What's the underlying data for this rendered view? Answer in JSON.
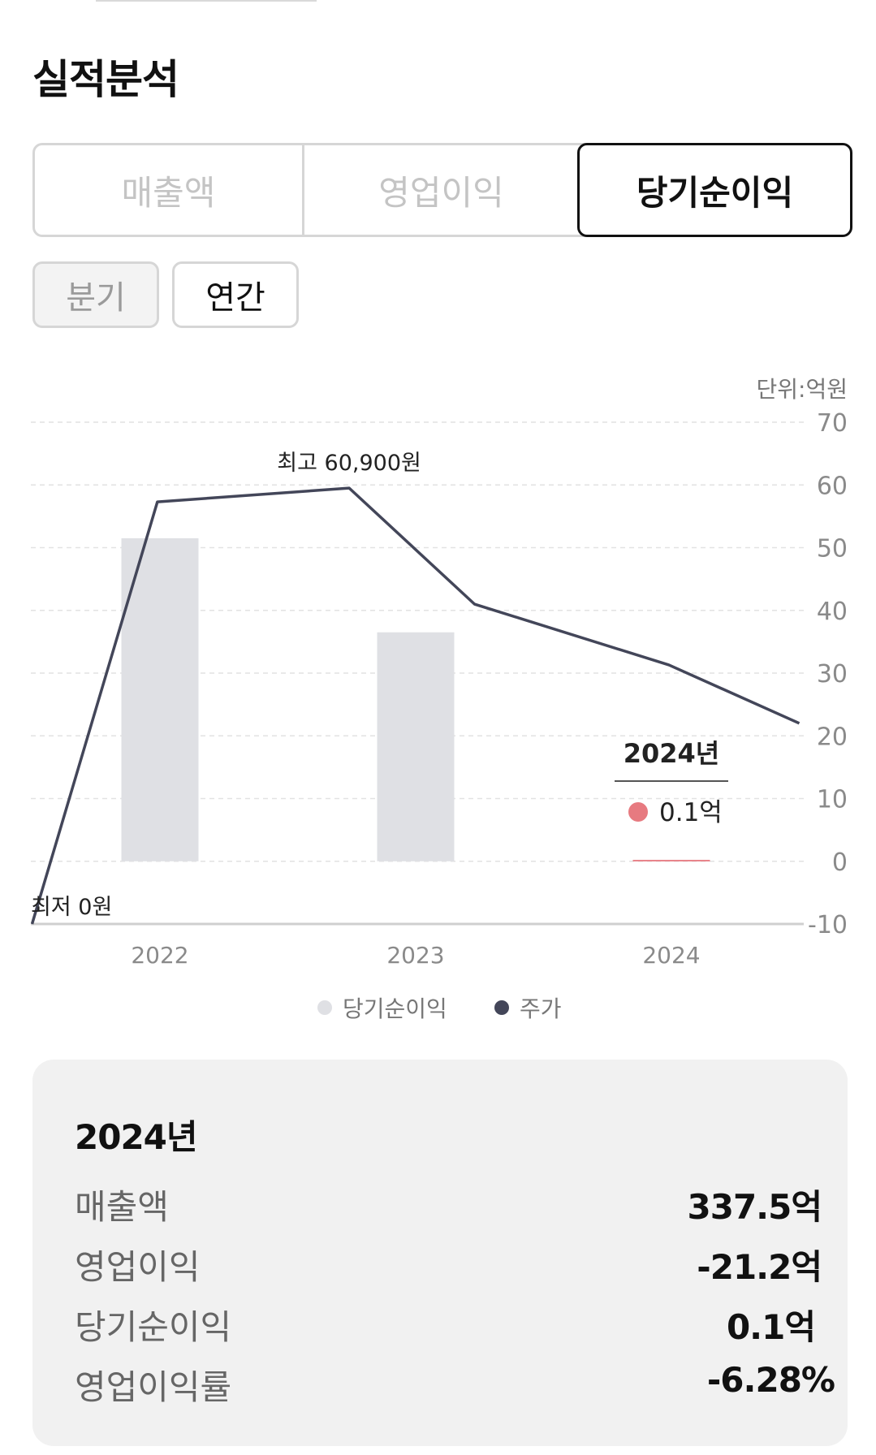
{
  "section": {
    "title": "실적분석"
  },
  "metric_tabs": [
    {
      "label": "매출액",
      "active": false
    },
    {
      "label": "영업이익",
      "active": false
    },
    {
      "label": "당기순이익",
      "active": true
    }
  ],
  "period_tabs": [
    {
      "label": "분기",
      "active": false
    },
    {
      "label": "연간",
      "active": true
    }
  ],
  "chart_data": {
    "type": "bar",
    "unit_label": "단위:억원",
    "categories": [
      "2022",
      "2023",
      "2024"
    ],
    "ylim": [
      -10,
      70
    ],
    "yticks": [
      -10,
      0,
      10,
      20,
      30,
      40,
      50,
      60,
      70
    ],
    "grid": true,
    "legend_position": "bottom",
    "series": [
      {
        "name": "당기순이익",
        "type": "bar",
        "color": "#dfe0e4",
        "highlight_color": "#e8848a",
        "values": [
          51.5,
          36.5,
          0.1
        ]
      },
      {
        "name": "주가",
        "type": "line",
        "color": "#434659",
        "x": [
          2021.5,
          2021.99,
          2022.74,
          2023.23,
          2023.99,
          2024.5
        ],
        "values": [
          -10,
          57.3,
          59.5,
          41,
          31.3,
          22
        ]
      }
    ],
    "annotations": {
      "max_label": "최고 60,900원",
      "min_label": "최저 0원"
    },
    "tooltip": {
      "year": "2024년",
      "value": "0.1억",
      "dot_color": "#e77a80"
    }
  },
  "summary": {
    "year": "2024년",
    "rows": [
      {
        "label": "매출액",
        "value": "337.5억"
      },
      {
        "label": "영업이익",
        "value": "-21.2억"
      },
      {
        "label": "당기순이익",
        "value": "0.1억"
      },
      {
        "label": "영업이익률",
        "value": "-6.28%"
      }
    ]
  }
}
